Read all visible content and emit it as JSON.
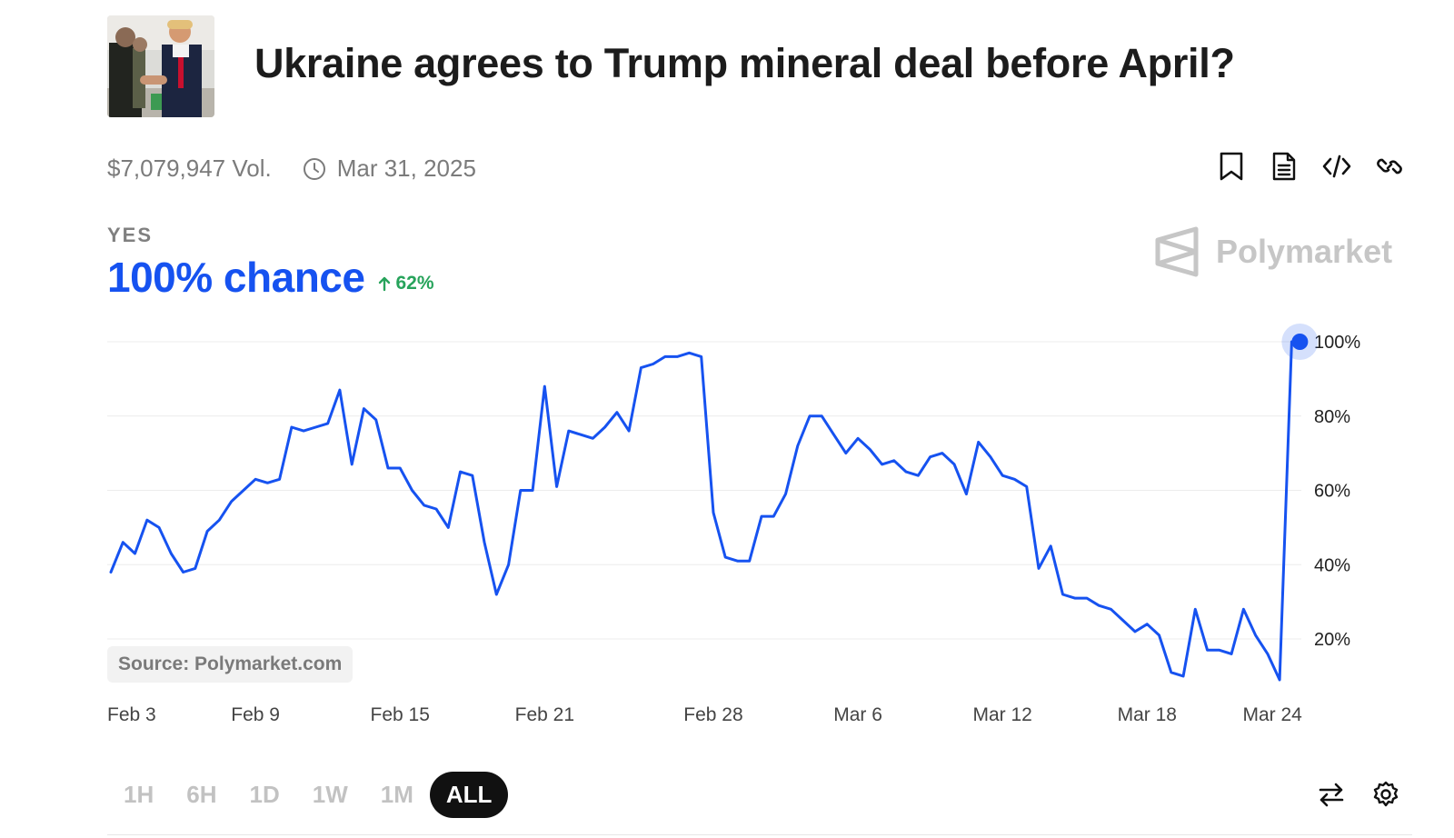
{
  "market": {
    "title": "Ukraine agrees to Trump mineral deal before April?",
    "volume": "$7,079,947 Vol.",
    "end_date": "Mar 31, 2025"
  },
  "actions": [
    {
      "name": "bookmark-icon"
    },
    {
      "name": "document-icon"
    },
    {
      "name": "embed-code-icon"
    },
    {
      "name": "link-icon"
    }
  ],
  "outcome": {
    "label": "YES",
    "chance": "100% chance",
    "delta": "62%",
    "delta_direction": "up"
  },
  "brand": {
    "name": "Polymarket"
  },
  "source": "Source: Polymarket.com",
  "ranges": [
    "1H",
    "6H",
    "1D",
    "1W",
    "1M",
    "ALL"
  ],
  "active_range": "ALL",
  "colors": {
    "accent": "#1652f0",
    "positive": "#27a35b"
  },
  "chart_data": {
    "type": "line",
    "series": [
      {
        "values": [
          [
            0,
            38
          ],
          [
            0.5,
            46
          ],
          [
            1,
            43
          ],
          [
            1.5,
            52
          ],
          [
            2,
            50
          ],
          [
            2.5,
            43
          ],
          [
            3,
            38
          ],
          [
            3.5,
            39
          ],
          [
            4,
            49
          ],
          [
            4.5,
            52
          ],
          [
            5,
            57
          ],
          [
            5.5,
            60
          ],
          [
            6,
            63
          ],
          [
            6.5,
            62
          ],
          [
            7,
            63
          ],
          [
            7.5,
            77
          ],
          [
            8,
            76
          ],
          [
            8.5,
            77
          ],
          [
            9,
            78
          ],
          [
            9.5,
            87
          ],
          [
            10,
            67
          ],
          [
            10.5,
            82
          ],
          [
            11,
            79
          ],
          [
            11.5,
            66
          ],
          [
            12,
            66
          ],
          [
            12.5,
            60
          ],
          [
            13,
            56
          ],
          [
            13.5,
            55
          ],
          [
            14,
            50
          ],
          [
            14.5,
            65
          ],
          [
            15,
            64
          ],
          [
            15.5,
            46
          ],
          [
            16,
            32
          ],
          [
            16.5,
            40
          ],
          [
            17,
            60
          ],
          [
            17.5,
            60
          ],
          [
            18,
            88
          ],
          [
            18.5,
            61
          ],
          [
            19,
            76
          ],
          [
            19.5,
            75
          ],
          [
            20,
            74
          ],
          [
            20.5,
            77
          ],
          [
            21,
            81
          ],
          [
            21.5,
            76
          ],
          [
            22,
            93
          ],
          [
            22.5,
            94
          ],
          [
            23,
            96
          ],
          [
            23.5,
            96
          ],
          [
            24,
            97
          ],
          [
            24.5,
            96
          ],
          [
            25,
            54
          ],
          [
            25.5,
            42
          ],
          [
            26,
            41
          ],
          [
            26.5,
            41
          ],
          [
            27,
            53
          ],
          [
            27.5,
            53
          ],
          [
            28,
            59
          ],
          [
            28.5,
            72
          ],
          [
            29,
            80
          ],
          [
            29.5,
            80
          ],
          [
            30,
            75
          ],
          [
            30.5,
            70
          ],
          [
            31,
            74
          ],
          [
            31.5,
            71
          ],
          [
            32,
            67
          ],
          [
            32.5,
            68
          ],
          [
            33,
            65
          ],
          [
            33.5,
            64
          ],
          [
            34,
            69
          ],
          [
            34.5,
            70
          ],
          [
            35,
            67
          ],
          [
            35.5,
            59
          ],
          [
            36,
            73
          ],
          [
            36.5,
            69
          ],
          [
            37,
            64
          ],
          [
            37.5,
            63
          ],
          [
            38,
            61
          ],
          [
            38.5,
            39
          ],
          [
            39,
            45
          ],
          [
            39.5,
            32
          ],
          [
            40,
            31
          ],
          [
            40.5,
            31
          ],
          [
            41,
            29
          ],
          [
            41.5,
            28
          ],
          [
            42,
            25
          ],
          [
            42.5,
            22
          ],
          [
            43,
            24
          ],
          [
            43.5,
            21
          ],
          [
            44,
            11
          ],
          [
            44.5,
            10
          ],
          [
            45,
            28
          ],
          [
            45.5,
            17
          ],
          [
            46,
            17
          ],
          [
            46.5,
            16
          ],
          [
            47,
            28
          ],
          [
            47.5,
            21
          ],
          [
            48,
            16
          ],
          [
            48.5,
            9
          ],
          [
            49,
            100
          ]
        ]
      }
    ],
    "x_ticks": [
      "Feb 3",
      "Feb 9",
      "Feb 15",
      "Feb 21",
      "Feb 28",
      "Mar 6",
      "Mar 12",
      "Mar 18",
      "Mar 24"
    ],
    "x_tick_positions": [
      0,
      6,
      12,
      18,
      25,
      31,
      37,
      43,
      48.2
    ],
    "y_ticks": [
      "20%",
      "40%",
      "60%",
      "80%",
      "100%"
    ],
    "y_tick_values": [
      20,
      40,
      60,
      80,
      100
    ],
    "ylim": [
      9,
      100
    ],
    "xlim": [
      0,
      49.4
    ],
    "grid": true,
    "end_value": 100
  }
}
